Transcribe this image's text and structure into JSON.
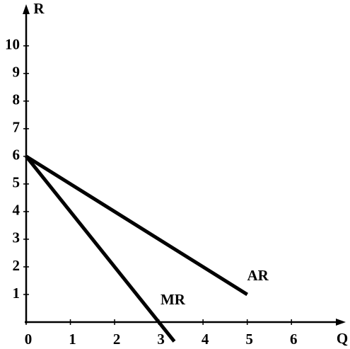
{
  "chart_data": {
    "type": "line",
    "x_label": "Q",
    "y_label": "R",
    "xlim": [
      0,
      7.1
    ],
    "ylim": [
      0,
      11.3
    ],
    "xticks": [
      0,
      1,
      2,
      3,
      4,
      5,
      6
    ],
    "yticks": [
      1,
      2,
      3,
      4,
      5,
      6,
      7,
      8,
      9,
      10
    ],
    "series": [
      {
        "name": "AR",
        "color": "#000000",
        "x": [
          0,
          5
        ],
        "values": [
          6,
          1
        ]
      },
      {
        "name": "MR",
        "color": "#000000",
        "x": [
          0,
          3.35
        ],
        "values": [
          6,
          -0.7
        ]
      }
    ]
  }
}
